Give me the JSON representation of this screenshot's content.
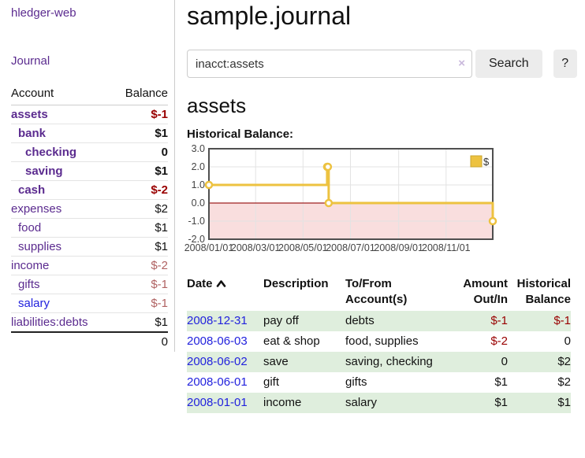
{
  "app": {
    "brand": "hledger-web",
    "nav": {
      "journal": "Journal"
    }
  },
  "sidebar": {
    "header": {
      "account": "Account",
      "balance": "Balance"
    },
    "accounts": [
      {
        "name": "assets",
        "level": 1,
        "balance": "$-1",
        "emphasis": true,
        "balance_tone": "negative-strong",
        "link_tone": "purple"
      },
      {
        "name": "bank",
        "level": 2,
        "balance": "$1",
        "emphasis": true,
        "balance_tone": "normal",
        "link_tone": "purple"
      },
      {
        "name": "checking",
        "level": 3,
        "balance": "0",
        "emphasis": true,
        "balance_tone": "normal",
        "link_tone": "purple"
      },
      {
        "name": "saving",
        "level": 3,
        "balance": "$1",
        "emphasis": true,
        "balance_tone": "normal",
        "link_tone": "purple"
      },
      {
        "name": "cash",
        "level": 2,
        "balance": "$-2",
        "emphasis": true,
        "balance_tone": "negative-strong",
        "link_tone": "purple"
      },
      {
        "name": "expenses",
        "level": 1,
        "balance": "$2",
        "emphasis": false,
        "balance_tone": "normal",
        "link_tone": "purple"
      },
      {
        "name": "food",
        "level": 2,
        "balance": "$1",
        "emphasis": false,
        "balance_tone": "normal",
        "link_tone": "purple"
      },
      {
        "name": "supplies",
        "level": 2,
        "balance": "$1",
        "emphasis": false,
        "balance_tone": "normal",
        "link_tone": "purple"
      },
      {
        "name": "income",
        "level": 1,
        "balance": "$-2",
        "emphasis": false,
        "balance_tone": "negative-muted",
        "link_tone": "purple"
      },
      {
        "name": "gifts",
        "level": 2,
        "balance": "$-1",
        "emphasis": false,
        "balance_tone": "negative-muted",
        "link_tone": "purple"
      },
      {
        "name": "salary",
        "level": 2,
        "balance": "$-1",
        "emphasis": false,
        "balance_tone": "negative-muted",
        "link_tone": "blue"
      },
      {
        "name": "liabilities:debts",
        "level": 1,
        "balance": "$1",
        "emphasis": false,
        "balance_tone": "normal",
        "link_tone": "purple"
      }
    ],
    "total": "0"
  },
  "main": {
    "title": "sample.journal",
    "search": {
      "value": "inacct:assets",
      "clear_icon": "×",
      "button_label": "Search",
      "help_label": "?"
    },
    "section_title": "assets",
    "chart_label": "Historical Balance:"
  },
  "chart_data": {
    "type": "line",
    "title": "Historical Balance",
    "step": true,
    "series": [
      {
        "name": "$",
        "color": "#edc240",
        "points": [
          {
            "date": "2008-01-01",
            "value": 1
          },
          {
            "date": "2008-06-01",
            "value": 2
          },
          {
            "date": "2008-06-02",
            "value": 2
          },
          {
            "date": "2008-06-03",
            "value": 0
          },
          {
            "date": "2008-12-31",
            "value": -1
          }
        ]
      }
    ],
    "xlim": [
      "2008-01-01",
      "2008-12-31"
    ],
    "ylim": [
      -2,
      3
    ],
    "x_ticks": [
      "2008/01/01",
      "2008/03/01",
      "2008/05/01",
      "2008/07/01",
      "2008/09/01",
      "2008/11/01"
    ],
    "y_ticks": [
      "3.0",
      "2.0",
      "1.0",
      "0.0",
      "-1.0",
      "-2.0"
    ],
    "legend": {
      "label": "$",
      "position": "top-right"
    },
    "grid": true,
    "negative_region": true
  },
  "register": {
    "headers": {
      "date": "Date",
      "description": "Description",
      "accounts": "To/From Account(s)",
      "amount": "Amount Out/In",
      "balance": "Historical Balance"
    },
    "sort": {
      "column": "Date",
      "direction": "ascending"
    },
    "rows": [
      {
        "date": "2008-12-31",
        "description": "pay off",
        "accounts": "debts",
        "amount": "$-1",
        "balance": "$-1",
        "amount_tone": "negative",
        "balance_tone": "negative"
      },
      {
        "date": "2008-06-03",
        "description": "eat & shop",
        "accounts": "food, supplies",
        "amount": "$-2",
        "balance": "0",
        "amount_tone": "negative",
        "balance_tone": "normal"
      },
      {
        "date": "2008-06-02",
        "description": "save",
        "accounts": "saving, checking",
        "amount": "0",
        "balance": "$2",
        "amount_tone": "normal",
        "balance_tone": "normal"
      },
      {
        "date": "2008-06-01",
        "description": "gift",
        "accounts": "gifts",
        "amount": "$1",
        "balance": "$2",
        "amount_tone": "normal",
        "balance_tone": "normal"
      },
      {
        "date": "2008-01-01",
        "description": "income",
        "accounts": "salary",
        "amount": "$1",
        "balance": "$1",
        "amount_tone": "normal",
        "balance_tone": "normal"
      }
    ]
  },
  "theme": {
    "link_purple": "#5b2b8f",
    "link_blue": "#2222dd",
    "negative_strong": "#990000",
    "negative_muted": "#b06262",
    "row_stripe_green": "#dfeedd",
    "series_gold": "#edc240",
    "chart_negative_fill": "#f9dede",
    "chart_zero_line": "#9e2020",
    "chart_border": "#4f4f4f",
    "grid_line": "#e3e3e3",
    "button_bg": "#ececec"
  }
}
